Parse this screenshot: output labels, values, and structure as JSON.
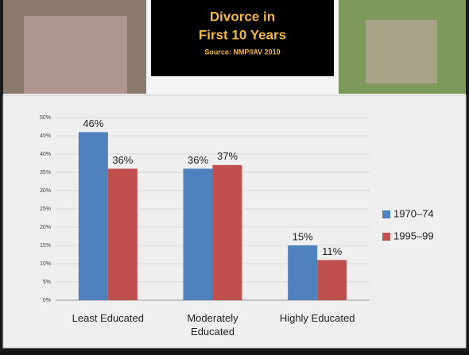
{
  "chart_data": {
    "type": "bar",
    "title_lines": [
      "Divorce in",
      "First 10 Years"
    ],
    "source": "Source: NMP/IAV 2010",
    "categories": [
      "Least Educated",
      "Moderately Educated",
      "Highly Educated"
    ],
    "series": [
      {
        "name": "1970–74",
        "color": "#4f81bd",
        "values": [
          46,
          36,
          15
        ],
        "value_labels": [
          "46%",
          "36%",
          "15%"
        ]
      },
      {
        "name": "1995–99",
        "color": "#c0504d",
        "values": [
          36,
          37,
          11
        ],
        "value_labels": [
          "36%",
          "37%",
          "11%"
        ]
      }
    ],
    "ylim": [
      0,
      50
    ],
    "yticks": [
      {
        "value": 0,
        "label": "0%"
      },
      {
        "value": 5,
        "label": "5%"
      },
      {
        "value": 10,
        "label": "10%"
      },
      {
        "value": 15,
        "label": "15%"
      },
      {
        "value": 20,
        "label": "20%"
      },
      {
        "value": 25,
        "label": "25%"
      },
      {
        "value": 30,
        "label": "30%"
      },
      {
        "value": 35,
        "label": "35%"
      },
      {
        "value": 40,
        "label": "40%"
      },
      {
        "value": 45,
        "label": "45%"
      },
      {
        "value": 50,
        "label": "50%"
      }
    ],
    "grid": true,
    "legend": "right"
  }
}
